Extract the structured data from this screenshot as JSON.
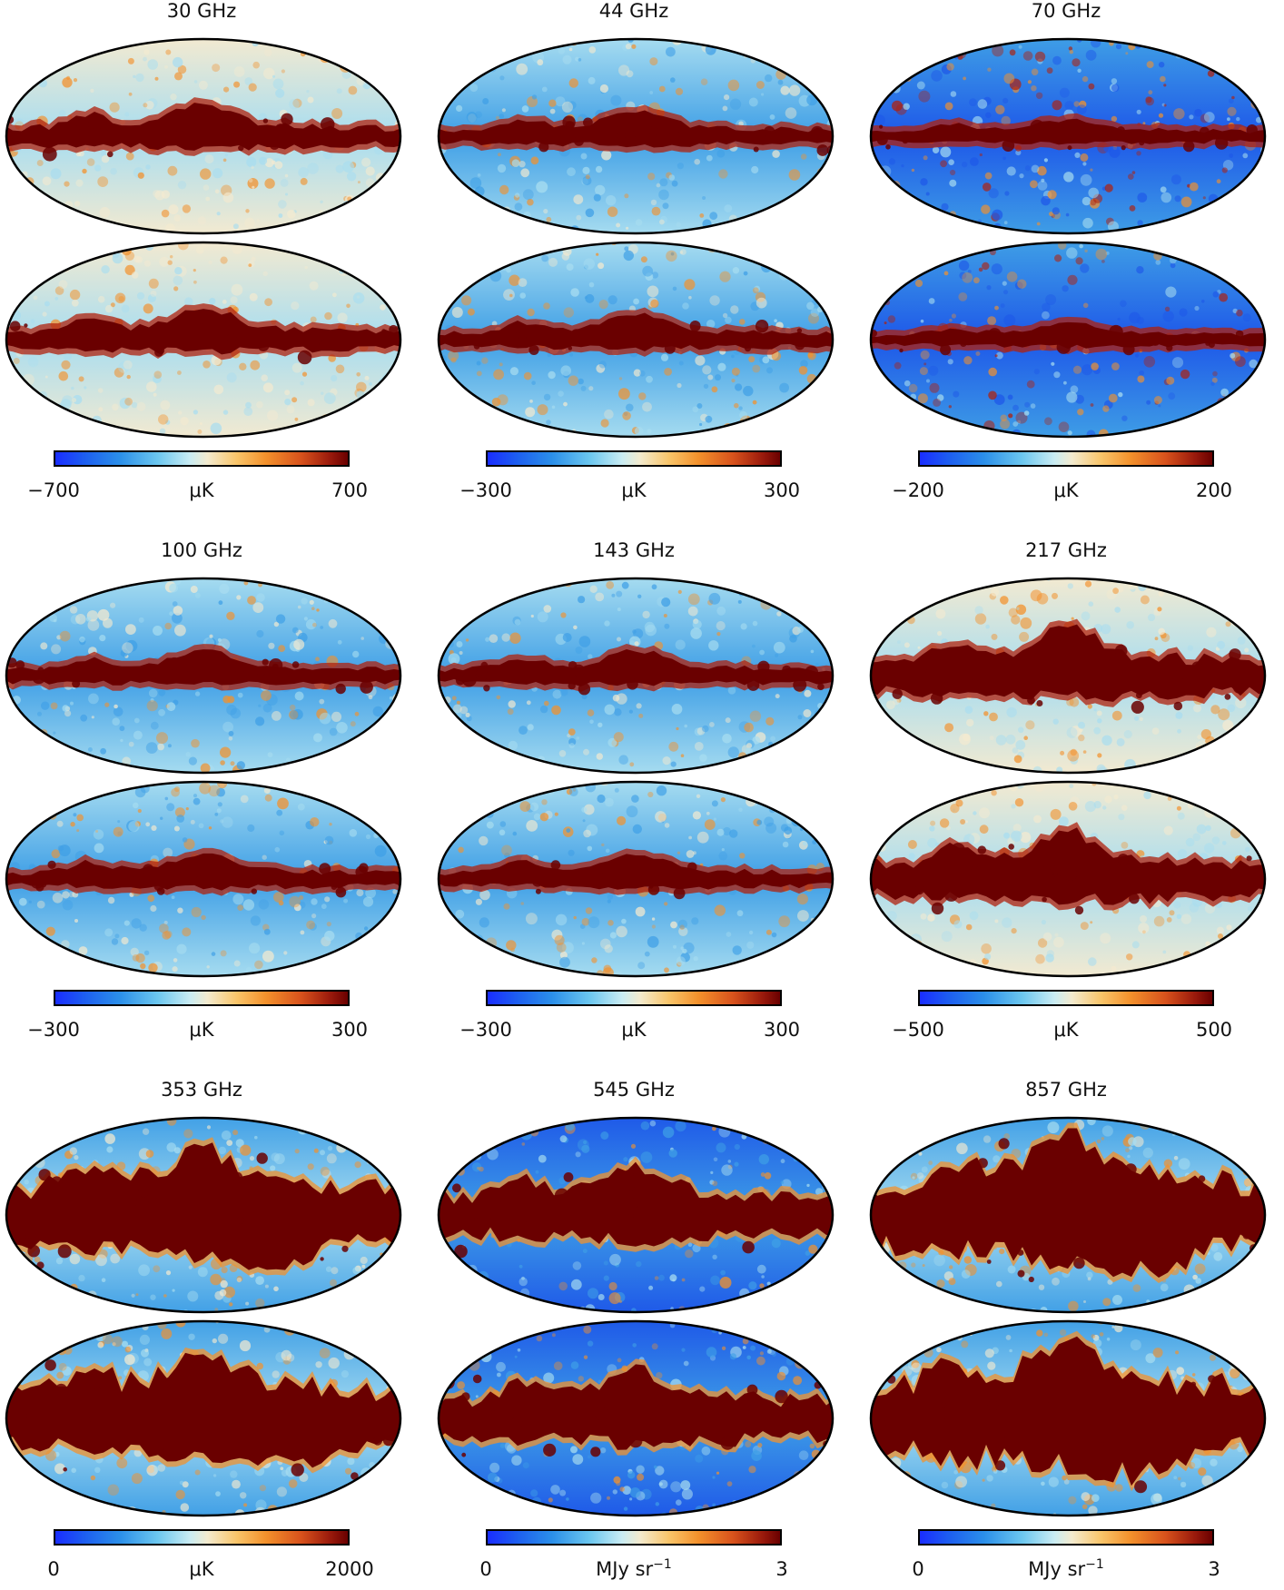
{
  "colors": {
    "dark_red": "#6a0000",
    "red": "#b0200c",
    "orange": "#f3912c",
    "cream": "#f4ead0",
    "light_blue": "#a8ddf0",
    "blue": "#3f9fe6",
    "deep_blue": "#1e58e8"
  },
  "panels": [
    {
      "freq": "30 GHz",
      "cbar": {
        "min": "−700",
        "max": "700",
        "unit": "μK"
      },
      "style": "lfi"
    },
    {
      "freq": "44 GHz",
      "cbar": {
        "min": "−300",
        "max": "300",
        "unit": "μK"
      },
      "style": "mid"
    },
    {
      "freq": "70 GHz",
      "cbar": {
        "min": "−200",
        "max": "200",
        "unit": "μK"
      },
      "style": "noisy"
    },
    {
      "freq": "100 GHz",
      "cbar": {
        "min": "−300",
        "max": "300",
        "unit": "μK"
      },
      "style": "mid"
    },
    {
      "freq": "143 GHz",
      "cbar": {
        "min": "−300",
        "max": "300",
        "unit": "μK"
      },
      "style": "mid"
    },
    {
      "freq": "217 GHz",
      "cbar": {
        "min": "−500",
        "max": "500",
        "unit": "μK"
      },
      "style": "thick"
    },
    {
      "freq": "353 GHz",
      "cbar": {
        "min": "0",
        "max": "2000",
        "unit": "μK"
      },
      "style": "dust"
    },
    {
      "freq": "545 GHz",
      "cbar": {
        "min": "0",
        "max": "3",
        "unit": "MJy sr",
        "unit_exp": "−1"
      },
      "style": "dust_blue"
    },
    {
      "freq": "857 GHz",
      "cbar": {
        "min": "0",
        "max": "3",
        "unit": "MJy sr",
        "unit_exp": "−1"
      },
      "style": "dust_heavy"
    }
  ]
}
